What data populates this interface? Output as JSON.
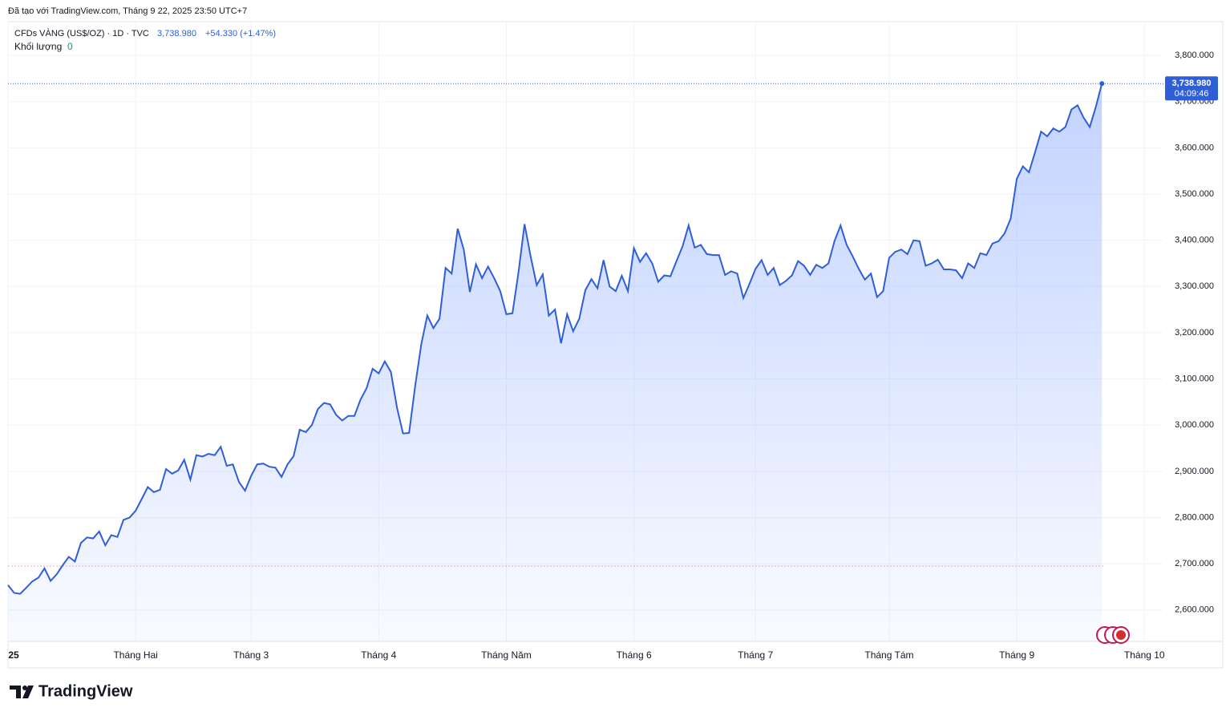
{
  "header": {
    "credit": "Đã tạo với TradingView.com, Tháng 9 22, 2025 23:50 UTC+7"
  },
  "legend": {
    "symbol": "CFDs VÀNG (US$/OZ) · 1D · TVC",
    "price": "3,738.980",
    "change": "+54.330 (+1.47%)",
    "volume_label": "Khối lượng",
    "volume": "0"
  },
  "price_tag": {
    "price": "3,738.980",
    "countdown": "04:09:46"
  },
  "logo": "TradingView",
  "chart_data": {
    "type": "area",
    "color": "#2e5fd6",
    "values": [
      2654,
      2637,
      2635,
      2648,
      2662,
      2670,
      2690,
      2663,
      2677,
      2697,
      2715,
      2705,
      2745,
      2757,
      2755,
      2770,
      2740,
      2762,
      2758,
      2795,
      2800,
      2815,
      2840,
      2866,
      2855,
      2860,
      2905,
      2895,
      2902,
      2925,
      2882,
      2935,
      2932,
      2938,
      2935,
      2953,
      2912,
      2915,
      2877,
      2858,
      2890,
      2915,
      2917,
      2910,
      2908,
      2888,
      2915,
      2933,
      2990,
      2985,
      3000,
      3035,
      3048,
      3045,
      3022,
      3010,
      3020,
      3020,
      3055,
      3080,
      3122,
      3112,
      3138,
      3115,
      3038,
      2982,
      2983,
      3085,
      3175,
      3237,
      3210,
      3230,
      3340,
      3328,
      3425,
      3380,
      3288,
      3348,
      3318,
      3343,
      3318,
      3290,
      3240,
      3242,
      3330,
      3435,
      3365,
      3303,
      3326,
      3237,
      3250,
      3177,
      3240,
      3203,
      3230,
      3292,
      3316,
      3296,
      3357,
      3300,
      3290,
      3323,
      3290,
      3383,
      3353,
      3372,
      3350,
      3310,
      3324,
      3322,
      3355,
      3387,
      3432,
      3384,
      3390,
      3370,
      3368,
      3368,
      3325,
      3333,
      3328,
      3275,
      3305,
      3338,
      3357,
      3325,
      3340,
      3303,
      3312,
      3324,
      3355,
      3345,
      3325,
      3347,
      3340,
      3350,
      3398,
      3432,
      3390,
      3365,
      3338,
      3315,
      3328,
      3277,
      3290,
      3362,
      3375,
      3380,
      3370,
      3400,
      3398,
      3345,
      3350,
      3358,
      3337,
      3337,
      3335,
      3318,
      3350,
      3340,
      3372,
      3368,
      3393,
      3398,
      3415,
      3447,
      3533,
      3560,
      3547,
      3590,
      3635,
      3625,
      3642,
      3635,
      3645,
      3683,
      3692,
      3665,
      3645,
      3688,
      3738.98
    ],
    "reference_line": 2695,
    "xlim": [
      0,
      190
    ],
    "xticks": [
      {
        "value": 0,
        "label": "25"
      },
      {
        "value": 21,
        "label": "Tháng Hai"
      },
      {
        "value": 40,
        "label": "Tháng 3"
      },
      {
        "value": 61,
        "label": "Tháng 4"
      },
      {
        "value": 82,
        "label": "Tháng Năm"
      },
      {
        "value": 103,
        "label": "Tháng 6"
      },
      {
        "value": 123,
        "label": "Tháng 7"
      },
      {
        "value": 145,
        "label": "Tháng Tám"
      },
      {
        "value": 166,
        "label": "Tháng 9"
      },
      {
        "value": 187,
        "label": "Tháng 10"
      }
    ],
    "ylim": [
      2532,
      3873
    ],
    "yticks": [
      {
        "value": 2600,
        "label": "2,600.000"
      },
      {
        "value": 2700,
        "label": "2,700.000"
      },
      {
        "value": 2800,
        "label": "2,800.000"
      },
      {
        "value": 2900,
        "label": "2,900.000"
      },
      {
        "value": 3000,
        "label": "3,000.000"
      },
      {
        "value": 3100,
        "label": "3,100.000"
      },
      {
        "value": 3200,
        "label": "3,200.000"
      },
      {
        "value": 3300,
        "label": "3,300.000"
      },
      {
        "value": 3400,
        "label": "3,400.000"
      },
      {
        "value": 3500,
        "label": "3,500.000"
      },
      {
        "value": 3600,
        "label": "3,600.000"
      },
      {
        "value": 3700,
        "label": "3,700.000"
      },
      {
        "value": 3800,
        "label": "3,800.000"
      }
    ],
    "grid": true
  }
}
